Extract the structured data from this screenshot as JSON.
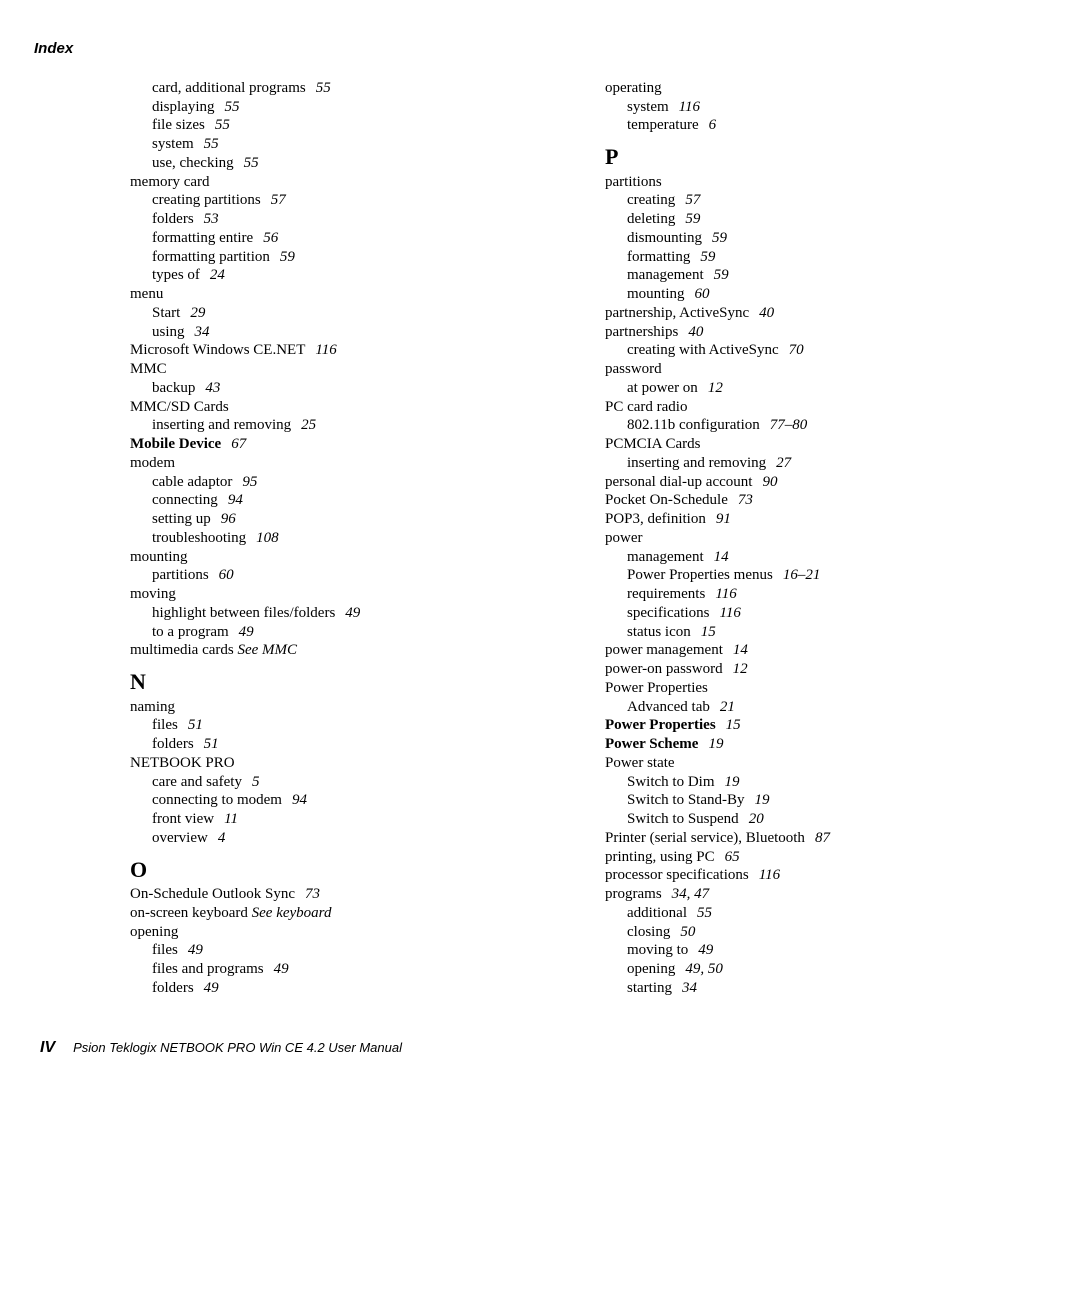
{
  "header": "Index",
  "footer": {
    "page_number": "IV",
    "title": "Psion Teklogix NETBOOK PRO Win CE 4.2 User Manual"
  },
  "columns": [
    {
      "entries": [
        {
          "level": 1,
          "text": "card, additional programs",
          "page": "55"
        },
        {
          "level": 1,
          "text": "displaying",
          "page": "55"
        },
        {
          "level": 1,
          "text": "file sizes",
          "page": "55"
        },
        {
          "level": 1,
          "text": "system",
          "page": "55"
        },
        {
          "level": 1,
          "text": "use, checking",
          "page": "55"
        },
        {
          "level": 0,
          "text": "memory card"
        },
        {
          "level": 1,
          "text": "creating partitions",
          "page": "57"
        },
        {
          "level": 1,
          "text": "folders",
          "page": "53"
        },
        {
          "level": 1,
          "text": "formatting entire",
          "page": "56"
        },
        {
          "level": 1,
          "text": "formatting partition",
          "page": "59"
        },
        {
          "level": 1,
          "text": "types of",
          "page": "24"
        },
        {
          "level": 0,
          "text": "menu"
        },
        {
          "level": 1,
          "text": "Start",
          "page": "29"
        },
        {
          "level": 1,
          "text": "using",
          "page": "34"
        },
        {
          "level": 0,
          "text": "Microsoft Windows CE.NET",
          "page": "116"
        },
        {
          "level": 0,
          "text": "MMC"
        },
        {
          "level": 1,
          "text": "backup",
          "page": "43"
        },
        {
          "level": 0,
          "text": "MMC/SD Cards"
        },
        {
          "level": 1,
          "text": "inserting and removing",
          "page": "25"
        },
        {
          "level": 0,
          "text": "Mobile Device",
          "page": "67",
          "bold": true
        },
        {
          "level": 0,
          "text": "modem"
        },
        {
          "level": 1,
          "text": "cable adaptor",
          "page": "95"
        },
        {
          "level": 1,
          "text": "connecting",
          "page": "94"
        },
        {
          "level": 1,
          "text": "setting up",
          "page": "96"
        },
        {
          "level": 1,
          "text": "troubleshooting",
          "page": "108"
        },
        {
          "level": 0,
          "text": "mounting"
        },
        {
          "level": 1,
          "text": "partitions",
          "page": "60"
        },
        {
          "level": 0,
          "text": "moving"
        },
        {
          "level": 1,
          "text": "highlight between files/folders",
          "page": "49"
        },
        {
          "level": 1,
          "text": "to a program",
          "page": "49"
        },
        {
          "level": 0,
          "text": "multimedia cards ",
          "see": "See MMC"
        },
        {
          "heading": "N"
        },
        {
          "level": 0,
          "text": "naming"
        },
        {
          "level": 1,
          "text": "files",
          "page": "51"
        },
        {
          "level": 1,
          "text": "folders",
          "page": "51"
        },
        {
          "level": 0,
          "text": "NETBOOK PRO"
        },
        {
          "level": 1,
          "text": "care and safety",
          "page": "5"
        },
        {
          "level": 1,
          "text": "connecting to modem",
          "page": "94"
        },
        {
          "level": 1,
          "text": "front view",
          "page": "11"
        },
        {
          "level": 1,
          "text": "overview",
          "page": "4"
        },
        {
          "heading": "O"
        },
        {
          "level": 0,
          "text": "On-Schedule Outlook Sync",
          "page": "73"
        },
        {
          "level": 0,
          "text": "on-screen keyboard ",
          "see": "See keyboard"
        },
        {
          "level": 0,
          "text": "opening"
        },
        {
          "level": 1,
          "text": "files",
          "page": "49"
        },
        {
          "level": 1,
          "text": "files and programs",
          "page": "49"
        },
        {
          "level": 1,
          "text": "folders",
          "page": "49"
        }
      ]
    },
    {
      "entries": [
        {
          "level": 0,
          "text": "operating"
        },
        {
          "level": 1,
          "text": "system",
          "page": "116"
        },
        {
          "level": 1,
          "text": "temperature",
          "page": "6"
        },
        {
          "heading": "P"
        },
        {
          "level": 0,
          "text": "partitions"
        },
        {
          "level": 1,
          "text": "creating",
          "page": "57"
        },
        {
          "level": 1,
          "text": "deleting",
          "page": "59"
        },
        {
          "level": 1,
          "text": "dismounting",
          "page": "59"
        },
        {
          "level": 1,
          "text": "formatting",
          "page": "59"
        },
        {
          "level": 1,
          "text": "management",
          "page": "59"
        },
        {
          "level": 1,
          "text": "mounting",
          "page": "60"
        },
        {
          "level": 0,
          "text": "partnership, ActiveSync",
          "page": "40"
        },
        {
          "level": 0,
          "text": "partnerships",
          "page": "40"
        },
        {
          "level": 1,
          "text": "creating with ActiveSync",
          "page": "70"
        },
        {
          "level": 0,
          "text": "password"
        },
        {
          "level": 1,
          "text": "at power on",
          "page": "12"
        },
        {
          "level": 0,
          "text": "PC card radio"
        },
        {
          "level": 1,
          "text": "802.11b configuration",
          "page": "77–80"
        },
        {
          "level": 0,
          "text": "PCMCIA Cards"
        },
        {
          "level": 1,
          "text": "inserting and removing",
          "page": "27"
        },
        {
          "level": 0,
          "text": "personal dial-up account",
          "page": "90"
        },
        {
          "level": 0,
          "text": "Pocket On-Schedule",
          "page": "73"
        },
        {
          "level": 0,
          "text": "POP3, definition",
          "page": "91"
        },
        {
          "level": 0,
          "text": "power"
        },
        {
          "level": 1,
          "text": "management",
          "page": "14"
        },
        {
          "level": 1,
          "text": "Power Properties menus",
          "page": "16–21"
        },
        {
          "level": 1,
          "text": "requirements",
          "page": "116"
        },
        {
          "level": 1,
          "text": "specifications",
          "page": "116"
        },
        {
          "level": 1,
          "text": "status icon",
          "page": "15"
        },
        {
          "level": 0,
          "text": "power management",
          "page": "14"
        },
        {
          "level": 0,
          "text": "power-on password",
          "page": "12"
        },
        {
          "level": 0,
          "text": "Power Properties"
        },
        {
          "level": 1,
          "text": "Advanced tab",
          "page": "21"
        },
        {
          "level": 0,
          "text": "Power Properties",
          "page": "15",
          "bold": true
        },
        {
          "level": 0,
          "text": "Power Scheme",
          "page": "19",
          "bold": true
        },
        {
          "level": 0,
          "text": "Power state"
        },
        {
          "level": 1,
          "text": "Switch to Dim",
          "page": "19"
        },
        {
          "level": 1,
          "text": "Switch to Stand-By",
          "page": "19"
        },
        {
          "level": 1,
          "text": "Switch to Suspend",
          "page": "20"
        },
        {
          "level": 0,
          "text": "Printer (serial service), Bluetooth",
          "page": "87"
        },
        {
          "level": 0,
          "text": "printing, using PC",
          "page": "65"
        },
        {
          "level": 0,
          "text": "processor specifications",
          "page": "116"
        },
        {
          "level": 0,
          "text": "programs",
          "page": "34, 47"
        },
        {
          "level": 1,
          "text": "additional",
          "page": "55"
        },
        {
          "level": 1,
          "text": "closing",
          "page": "50"
        },
        {
          "level": 1,
          "text": "moving to",
          "page": "49"
        },
        {
          "level": 1,
          "text": "opening",
          "page": "49, 50"
        },
        {
          "level": 1,
          "text": "starting",
          "page": "34"
        }
      ]
    }
  ]
}
